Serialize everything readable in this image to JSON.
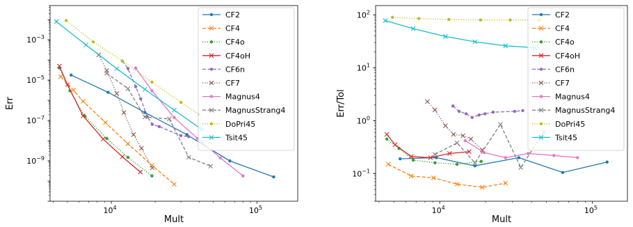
{
  "chart_data": [
    {
      "type": "line",
      "xlabel": "Mult",
      "ylabel": "Err",
      "xscale": "log",
      "yscale": "log",
      "xlim": [
        3800,
        190000
      ],
      "ylim": [
        1e-11,
        0.05
      ],
      "xticks": [
        {
          "v": 10000,
          "base": "10",
          "exp": "4"
        },
        {
          "v": 100000,
          "base": "10",
          "exp": "5"
        }
      ],
      "yticks": [
        {
          "v": 0.001,
          "base": "10",
          "exp": "−3"
        },
        {
          "v": 1e-05,
          "base": "10",
          "exp": "−5"
        },
        {
          "v": 1e-07,
          "base": "10",
          "exp": "−7"
        },
        {
          "v": 1e-09,
          "base": "10",
          "exp": "−9"
        }
      ],
      "legend_position": "top-right",
      "grid": false,
      "series": [
        {
          "name": "CF2",
          "color": "#1f77b4",
          "style": "solid",
          "marker": "dot",
          "points": [
            [
              5300,
              1.8e-05
            ],
            [
              9500,
              2.5e-06
            ],
            [
              17000,
              2.5e-07
            ],
            [
              33000,
              2e-08
            ],
            [
              65000,
              1e-09
            ],
            [
              130000,
              1.6e-10
            ]
          ]
        },
        {
          "name": "CF4",
          "color": "#ff7f0e",
          "style": "dashed",
          "marker": "x",
          "points": [
            [
              4500,
              1.5e-05
            ],
            [
              5500,
              3.2e-06
            ],
            [
              6400,
              9e-07
            ],
            [
              9100,
              8e-08
            ],
            [
              13000,
              7e-09
            ],
            [
              19000,
              6e-10
            ],
            [
              27000,
              7e-11
            ]
          ]
        },
        {
          "name": "CF4o",
          "color": "#2ca02c",
          "style": "dotted",
          "marker": "dot",
          "points": [
            [
              4400,
              4e-05
            ],
            [
              5200,
              3e-06
            ],
            [
              6600,
              1.6e-07
            ],
            [
              9300,
              1.3e-08
            ],
            [
              13000,
              1.5e-09
            ],
            [
              19000,
              1.8e-10
            ]
          ]
        },
        {
          "name": "CF4oH",
          "color": "#d62728",
          "style": "solid",
          "marker": "x",
          "points": [
            [
              4400,
              5e-05
            ],
            [
              5000,
              6e-06
            ],
            [
              6400,
              1.7e-07
            ],
            [
              8800,
              1.2e-08
            ],
            [
              11900,
              1.6e-09
            ],
            [
              15800,
              2.8e-10
            ]
          ]
        },
        {
          "name": "CF6n",
          "color": "#9467bd",
          "style": "dashed",
          "marker": "dot",
          "points": [
            [
              11900,
              9e-05
            ],
            [
              13000,
              3.8e-05
            ],
            [
              14700,
              4.8e-06
            ],
            [
              15900,
              1.2e-06
            ],
            [
              17600,
              1.6e-07
            ],
            [
              19100,
              6.5e-08
            ],
            [
              21300,
              5e-08
            ],
            [
              30000,
              1.8e-08
            ],
            [
              34000,
              1.6e-08
            ]
          ]
        },
        {
          "name": "CF7",
          "color": "#8c564b",
          "style": "dotted",
          "marker": "x",
          "points": [
            [
              8200,
              0.00018
            ],
            [
              9300,
              3e-05
            ],
            [
              10900,
              2.2e-06
            ],
            [
              12200,
              2.5e-07
            ],
            [
              14200,
              2e-08
            ],
            [
              16100,
              4.2e-09
            ],
            [
              19100,
              4.5e-10
            ]
          ]
        },
        {
          "name": "Magnus4",
          "color": "#e377c2",
          "style": "solid",
          "marker": "dot",
          "points": [
            [
              14700,
              4e-05
            ],
            [
              19000,
              3e-06
            ],
            [
              27000,
              1.4e-07
            ],
            [
              39000,
              1.3e-08
            ],
            [
              56000,
              1.4e-09
            ],
            [
              80000,
              1.8e-10
            ]
          ]
        },
        {
          "name": "MagnusStrang4",
          "color": "#7f7f7f",
          "style": "dashed",
          "marker": "x",
          "points": [
            [
              9300,
              2.2e-05
            ],
            [
              13000,
              3.8e-06
            ],
            [
              17000,
              1.5e-07
            ],
            [
              25000,
              1.2e-07
            ],
            [
              34000,
              1.5e-09
            ],
            [
              48000,
              5.5e-10
            ]
          ]
        },
        {
          "name": "DoPri45",
          "color": "#bcbd22",
          "style": "dotted",
          "marker": "dot",
          "points": [
            [
              4900,
              0.009
            ],
            [
              7500,
              0.0008
            ],
            [
              11900,
              9e-05
            ],
            [
              19000,
              8e-06
            ],
            [
              30000,
              8e-07
            ],
            [
              40000,
              2e-07
            ]
          ]
        },
        {
          "name": "Tsit45",
          "color": "#17becf",
          "style": "solid",
          "marker": "x",
          "points": [
            [
              4200,
              0.008
            ],
            [
              6700,
              0.00056
            ],
            [
              10900,
              3.7e-05
            ],
            [
              17000,
              3.5e-06
            ],
            [
              27000,
              3.3e-07
            ],
            [
              42000,
              3.5e-08
            ]
          ]
        }
      ]
    },
    {
      "type": "line",
      "xlabel": "Mult",
      "ylabel": "Err/Tol",
      "xscale": "log",
      "yscale": "log",
      "xlim": [
        3800,
        170000
      ],
      "ylim": [
        0.03,
        150
      ],
      "xticks": [
        {
          "v": 10000,
          "base": "10",
          "exp": "4"
        },
        {
          "v": 100000,
          "base": "10",
          "exp": "5"
        }
      ],
      "yticks": [
        {
          "v": 100,
          "base": "10",
          "exp": "2"
        },
        {
          "v": 10,
          "base": "10",
          "exp": "1"
        },
        {
          "v": 1,
          "base": "10",
          "exp": "0"
        },
        {
          "v": 0.1,
          "base": "10",
          "exp": "−1"
        }
      ],
      "legend_position": "top-right",
      "grid": false,
      "series": [
        {
          "name": "CF2",
          "color": "#1f77b4",
          "style": "solid",
          "marker": "dot",
          "points": [
            [
              5500,
              0.19
            ],
            [
              9500,
              0.2
            ],
            [
              17000,
              0.14
            ],
            [
              33000,
              0.2
            ],
            [
              64000,
              0.105
            ],
            [
              125000,
              0.165
            ]
          ]
        },
        {
          "name": "CF4",
          "color": "#ff7f0e",
          "style": "dashed",
          "marker": "x",
          "points": [
            [
              4600,
              0.15
            ],
            [
              6500,
              0.09
            ],
            [
              9100,
              0.083
            ],
            [
              13000,
              0.063
            ],
            [
              19000,
              0.055
            ],
            [
              27000,
              0.066
            ]
          ]
        },
        {
          "name": "CF4o",
          "color": "#2ca02c",
          "style": "dotted",
          "marker": "dot",
          "points": [
            [
              4500,
              0.45
            ],
            [
              5400,
              0.3
            ],
            [
              6700,
              0.18
            ],
            [
              9300,
              0.16
            ],
            [
              13000,
              0.15
            ],
            [
              18700,
              0.17
            ]
          ]
        },
        {
          "name": "CF4oH",
          "color": "#d62728",
          "style": "solid",
          "marker": "x",
          "points": [
            [
              4500,
              0.55
            ],
            [
              5100,
              0.35
            ],
            [
              6500,
              0.21
            ],
            [
              8700,
              0.2
            ],
            [
              11600,
              0.24
            ],
            [
              15600,
              0.26
            ]
          ]
        },
        {
          "name": "CF6n",
          "color": "#9467bd",
          "style": "dashed",
          "marker": "dot",
          "points": [
            [
              12200,
              1.9
            ],
            [
              13400,
              1.5
            ],
            [
              14900,
              1.35
            ],
            [
              16300,
              1.15
            ],
            [
              18100,
              1.28
            ],
            [
              19800,
              1.35
            ],
            [
              22400,
              1.45
            ],
            [
              31000,
              1.5
            ],
            [
              35000,
              1.55
            ]
          ]
        },
        {
          "name": "CF7",
          "color": "#8c564b",
          "style": "dotted",
          "marker": "x",
          "points": [
            [
              8300,
              2.3
            ],
            [
              9300,
              1.6
            ],
            [
              10900,
              0.8
            ],
            [
              12300,
              0.55
            ],
            [
              14200,
              0.52
            ],
            [
              16000,
              0.45
            ],
            [
              19000,
              0.28
            ]
          ]
        },
        {
          "name": "Magnus4",
          "color": "#e377c2",
          "style": "solid",
          "marker": "dot",
          "points": [
            [
              14700,
              0.42
            ],
            [
              19500,
              0.25
            ],
            [
              27000,
              0.2
            ],
            [
              38000,
              0.24
            ],
            [
              56000,
              0.22
            ],
            [
              80000,
              0.2
            ]
          ]
        },
        {
          "name": "MagnusStrang4",
          "color": "#7f7f7f",
          "style": "dashed",
          "marker": "x",
          "points": [
            [
              9300,
              0.23
            ],
            [
              13000,
              0.38
            ],
            [
              17000,
              0.16
            ],
            [
              25000,
              0.85
            ],
            [
              34000,
              0.13
            ],
            [
              48000,
              0.6
            ]
          ]
        },
        {
          "name": "DoPri45",
          "color": "#bcbd22",
          "style": "dotted",
          "marker": "dot",
          "points": [
            [
              4900,
              90
            ],
            [
              7300,
              85
            ],
            [
              11500,
              82
            ],
            [
              18500,
              80
            ],
            [
              29000,
              80
            ],
            [
              45000,
              80
            ]
          ]
        },
        {
          "name": "Tsit45",
          "color": "#17becf",
          "style": "solid",
          "marker": "x",
          "points": [
            [
              4400,
              78
            ],
            [
              6700,
              55
            ],
            [
              10900,
              39
            ],
            [
              17000,
              31
            ],
            [
              27000,
              26
            ],
            [
              42000,
              24
            ]
          ]
        }
      ]
    }
  ]
}
